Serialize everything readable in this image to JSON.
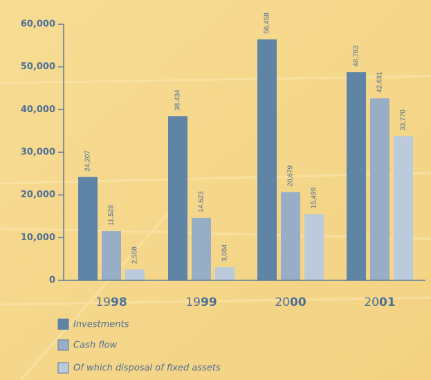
{
  "chart_data": {
    "type": "bar",
    "categories": [
      "1998",
      "1999",
      "2000",
      "2001"
    ],
    "series": [
      {
        "name": "Investments",
        "color": "#5f84a6",
        "values": [
          24207,
          38434,
          56458,
          48783
        ],
        "value_labels": [
          "24,207",
          "38,434",
          "56,458",
          "48,783"
        ]
      },
      {
        "name": "Cash flow",
        "color": "#98adc6",
        "values": [
          11528,
          14623,
          20679,
          42631
        ],
        "value_labels": [
          "11,528",
          "14,623",
          "20,679",
          "42,631"
        ]
      },
      {
        "name": "Of which disposal of fixed assets",
        "color": "#bccbdb",
        "values": [
          2558,
          3084,
          15499,
          33770
        ],
        "value_labels": [
          "2,558",
          "3,084",
          "15,499",
          "33,770"
        ]
      }
    ],
    "ylim": [
      0,
      60000
    ],
    "yticks": [
      0,
      {
        "value": 10000,
        "label": "10,000"
      },
      {
        "value": 20000,
        "label": "20,000"
      },
      {
        "value": 30000,
        "label": "30,000"
      },
      {
        "value": 40000,
        "label": "40,000"
      },
      {
        "value": 50000,
        "label": "50,000"
      },
      {
        "value": 60000,
        "label": "60,000"
      }
    ],
    "legend": "bottom-left"
  }
}
